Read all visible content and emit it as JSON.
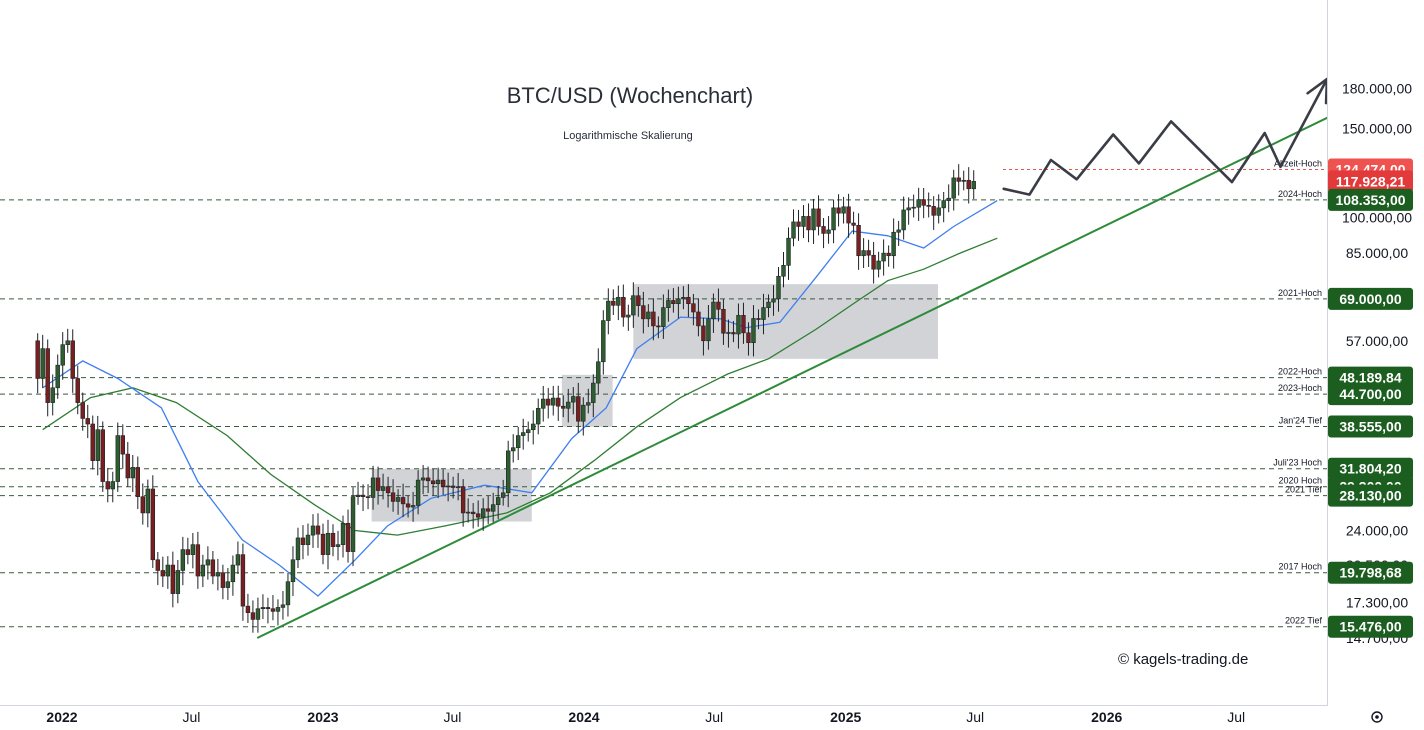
{
  "chart_data": {
    "type": "candlestick",
    "title": "BTC/USD (Wochenchart)",
    "subtitle": "Logarithmische Skalierung",
    "scale": "log",
    "ylim": [
      14200,
      205000
    ],
    "y_ticks": [
      {
        "value": 180000,
        "label": "180.000,00"
      },
      {
        "value": 150000,
        "label": "150.000,00"
      },
      {
        "value": 100000,
        "label": "100.000,00"
      },
      {
        "value": 85000,
        "label": "85.000,00"
      },
      {
        "value": 57000,
        "label": "57.000,00"
      },
      {
        "value": 32000,
        "label": "32.000,00"
      },
      {
        "value": 24000,
        "label": "24.000,00"
      },
      {
        "value": 20500,
        "label": "20.500,00"
      },
      {
        "value": 17300,
        "label": "17.300,00"
      },
      {
        "value": 14700,
        "label": "14.700,00"
      }
    ],
    "x_ticks": [
      {
        "date": "2022-01-01",
        "label": "2022",
        "bold": true
      },
      {
        "date": "2022-07-01",
        "label": "Jul",
        "bold": false
      },
      {
        "date": "2023-01-01",
        "label": "2023",
        "bold": true
      },
      {
        "date": "2023-07-01",
        "label": "Jul",
        "bold": false
      },
      {
        "date": "2024-01-01",
        "label": "2024",
        "bold": true
      },
      {
        "date": "2024-07-01",
        "label": "Jul",
        "bold": false
      },
      {
        "date": "2025-01-01",
        "label": "2025",
        "bold": true
      },
      {
        "date": "2025-07-01",
        "label": "Jul",
        "bold": false
      },
      {
        "date": "2026-01-01",
        "label": "2026",
        "bold": true
      },
      {
        "date": "2026-07-01",
        "label": "Jul",
        "bold": false
      }
    ],
    "levels": [
      {
        "name": "Allzeit-Hoch",
        "value": 124474,
        "label": "124.474,00",
        "color": "#ef5350",
        "line": "red"
      },
      {
        "name": "",
        "value": 117928.21,
        "label": "117.928,21",
        "color": "#e23a3a",
        "line": "none"
      },
      {
        "name": "2024-Hoch",
        "value": 108353,
        "label": "108.353,00",
        "color": "#1b5e20",
        "line": "dashed"
      },
      {
        "name": "2021-Hoch",
        "value": 69000,
        "label": "69.000,00",
        "color": "#1b5e20",
        "line": "dashed"
      },
      {
        "name": "2022-Hoch",
        "value": 48189.84,
        "label": "48.189,84",
        "color": "#1b5e20",
        "line": "dashed"
      },
      {
        "name": "2023-Hoch",
        "value": 44700,
        "label": "44.700,00",
        "color": "#1b5e20",
        "line": "dashed"
      },
      {
        "name": "Jan'24 Tief",
        "value": 38555,
        "label": "38.555,00",
        "color": "#1b5e20",
        "line": "dashed"
      },
      {
        "name": "Juli'23 Hoch",
        "value": 31804.2,
        "label": "31.804,20",
        "color": "#1b5e20",
        "line": "dashed"
      },
      {
        "name": "2020 Hoch",
        "value": 29300,
        "label": "29.300,00",
        "color": "#1b5e20",
        "line": "dashed"
      },
      {
        "name": "2021 Tief",
        "value": 28130,
        "label": "28.130,00",
        "color": "#1b5e20",
        "line": "dashed"
      },
      {
        "name": "2017 Hoch",
        "value": 19798.68,
        "label": "19.798,68",
        "color": "#1b5e20",
        "line": "dashed"
      },
      {
        "name": "2022 Tief",
        "value": 15476,
        "label": "15.476,00",
        "color": "#1b5e20",
        "line": "dashed"
      }
    ],
    "range_boxes": [
      {
        "x0": "2023-03-10",
        "x1": "2023-10-20",
        "y0": 25000,
        "y1": 31800
      },
      {
        "x0": "2023-12-01",
        "x1": "2024-02-10",
        "y0": 38500,
        "y1": 48800
      },
      {
        "x0": "2024-03-10",
        "x1": "2025-05-10",
        "y0": 52500,
        "y1": 73800
      }
    ],
    "trendline": {
      "x0": "2022-10-01",
      "y0": 14700,
      "x1": "2026-11-15",
      "y1": 160000,
      "color": "#2e8b3a"
    },
    "projection": {
      "color": "#3a3d46",
      "points": [
        [
          "2025-08-10",
          114000
        ],
        [
          "2025-09-15",
          111000
        ],
        [
          "2025-10-15",
          130000
        ],
        [
          "2025-11-20",
          119000
        ],
        [
          "2026-01-10",
          146000
        ],
        [
          "2026-02-15",
          128000
        ],
        [
          "2026-04-01",
          155000
        ],
        [
          "2026-06-25",
          117500
        ],
        [
          "2026-08-10",
          147000
        ],
        [
          "2026-09-01",
          126000
        ],
        [
          "2026-11-05",
          188000
        ]
      ]
    },
    "ema_short_color": "#3f7ff0",
    "ema_long_color": "#2f7d32",
    "ema_short": [
      [
        "2021-12-05",
        46000
      ],
      [
        "2022-01-30",
        52000
      ],
      [
        "2022-03-20",
        48000
      ],
      [
        "2022-05-20",
        42000
      ],
      [
        "2022-07-10",
        30000
      ],
      [
        "2022-09-10",
        23000
      ],
      [
        "2022-11-01",
        20500
      ],
      [
        "2022-12-25",
        17800
      ],
      [
        "2023-02-15",
        21000
      ],
      [
        "2023-04-01",
        24500
      ],
      [
        "2023-06-01",
        27800
      ],
      [
        "2023-08-15",
        29500
      ],
      [
        "2023-10-20",
        28500
      ],
      [
        "2023-12-15",
        36500
      ],
      [
        "2024-02-01",
        42000
      ],
      [
        "2024-03-15",
        55000
      ],
      [
        "2024-05-15",
        63500
      ],
      [
        "2024-07-10",
        63000
      ],
      [
        "2024-08-15",
        60500
      ],
      [
        "2024-10-01",
        62000
      ],
      [
        "2024-11-20",
        76000
      ],
      [
        "2025-01-10",
        94000
      ],
      [
        "2025-03-01",
        92000
      ],
      [
        "2025-04-20",
        87000
      ],
      [
        "2025-06-01",
        96000
      ],
      [
        "2025-08-01",
        108000
      ]
    ],
    "ema_long": [
      [
        "2021-12-05",
        38000
      ],
      [
        "2022-02-10",
        44000
      ],
      [
        "2022-04-10",
        46000
      ],
      [
        "2022-06-10",
        43000
      ],
      [
        "2022-08-20",
        37000
      ],
      [
        "2022-10-20",
        31000
      ],
      [
        "2022-12-20",
        27000
      ],
      [
        "2023-02-15",
        24000
      ],
      [
        "2023-04-15",
        23500
      ],
      [
        "2023-06-20",
        24500
      ],
      [
        "2023-09-15",
        26000
      ],
      [
        "2023-11-15",
        28500
      ],
      [
        "2024-01-15",
        33000
      ],
      [
        "2024-03-15",
        38500
      ],
      [
        "2024-05-15",
        44000
      ],
      [
        "2024-07-20",
        49000
      ],
      [
        "2024-09-15",
        52500
      ],
      [
        "2024-11-20",
        60000
      ],
      [
        "2025-01-15",
        68000
      ],
      [
        "2025-03-01",
        75000
      ],
      [
        "2025-04-20",
        79000
      ],
      [
        "2025-06-10",
        85000
      ],
      [
        "2025-08-01",
        91000
      ]
    ],
    "candles_weekly_close": [
      [
        48000,
        55000,
        43000,
        46000,
        51000,
        56000,
        57000,
        48000,
        43000,
        40000,
        39000,
        33000,
        38000,
        30000,
        29000,
        30000,
        37000,
        34000,
        30500,
        32000,
        28000,
        26000,
        29000,
        21000,
        20000,
        19500,
        20500,
        18000,
        20000,
        22000,
        21500,
        22500,
        19500,
        20500,
        21000,
        19500,
        19800,
        18500,
        19000,
        20500,
        21500,
        17000,
        16500,
        16000,
        16800,
        16900,
        16800,
        16600,
        16900,
        17100,
        19000,
        21000,
        23200,
        22500,
        23500,
        24500,
        23600,
        21500,
        23700,
        22300,
        22500,
        24800,
        21800,
        28000,
        28200,
        28000,
        27900,
        30500,
        28800,
        29300,
        28500,
        27400,
        27900,
        27100,
        26700,
        26900,
        30200,
        30500,
        30100,
        29700,
        30200,
        29300,
        29400,
        29200,
        29300,
        26000,
        26100,
        25900,
        25500,
        26500,
        26200,
        27000,
        27900,
        28500,
        34500,
        35000,
        37000,
        37500,
        38000,
        39000,
        41900,
        43700,
        42500,
        43900,
        42300,
        41900,
        43100,
        44200,
        39500,
        42500,
        43000,
        47000,
        51800,
        62500,
        68300,
        67000,
        69500,
        63500,
        64100,
        70000,
        66900,
        63000,
        65000,
        61000,
        60800,
        66300,
        68500,
        67500,
        69000,
        69500,
        67500,
        65000,
        61000,
        57000,
        63000,
        68000,
        65800,
        59000,
        59200,
        58800,
        64000,
        59100,
        56500,
        63100,
        62800,
        66300,
        68000,
        69000,
        76500,
        80400,
        91000,
        98000,
        96000,
        100500,
        94500,
        104000,
        96000,
        93000,
        94500,
        104500,
        102000,
        105000,
        97500,
        96500,
        84000,
        86000,
        84200,
        79000,
        82000,
        85000,
        84000,
        93500,
        94500,
        103500,
        104500,
        104800,
        108500,
        105700,
        105200,
        101000,
        104500,
        108000,
        109200,
        119800,
        117900,
        118500,
        114000,
        117928
      ]
    ]
  }
}
